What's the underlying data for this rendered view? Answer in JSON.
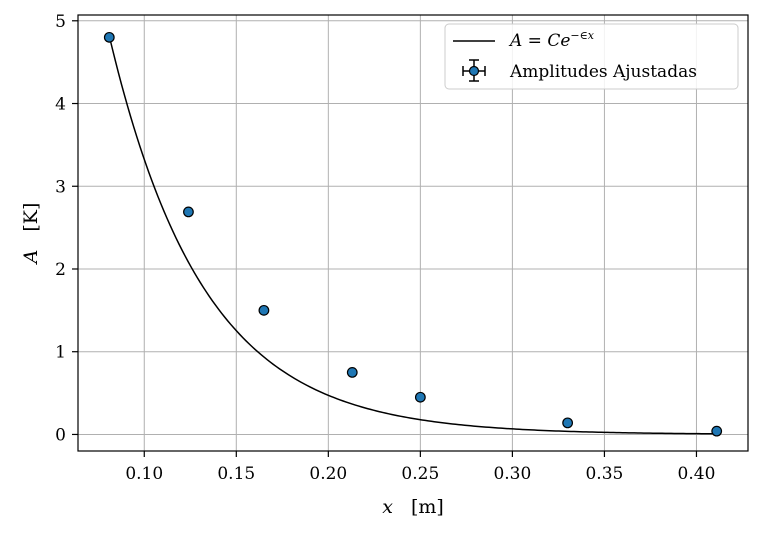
{
  "chart_data": {
    "type": "scatter",
    "title": "",
    "xlabel": {
      "var": "x",
      "unit": "[m]"
    },
    "ylabel": {
      "var": "A",
      "unit": "[K]"
    },
    "xlim": [
      0.064,
      0.428
    ],
    "ylim": [
      -0.2,
      5.07
    ],
    "xticks": [
      0.1,
      0.15,
      0.2,
      0.25,
      0.3,
      0.35,
      0.4
    ],
    "xtick_labels": [
      "0.10",
      "0.15",
      "0.20",
      "0.25",
      "0.30",
      "0.35",
      "0.40"
    ],
    "yticks": [
      0,
      1,
      2,
      3,
      4,
      5
    ],
    "ytick_labels": [
      "0",
      "1",
      "2",
      "3",
      "4",
      "5"
    ],
    "grid": true,
    "legend_position": "top-right",
    "series": [
      {
        "name": "Amplitudes Ajustadas",
        "kind": "points",
        "color": "#1f77b4",
        "edge_color": "#000000",
        "x": [
          0.081,
          0.124,
          0.165,
          0.213,
          0.25,
          0.33,
          0.411
        ],
        "y": [
          4.8,
          2.69,
          1.5,
          0.75,
          0.45,
          0.14,
          0.04
        ]
      },
      {
        "name": "A = Ce^{-εx}",
        "kind": "fit",
        "color": "#000000",
        "C": 23.37,
        "epsilon": 19.5
      }
    ]
  }
}
